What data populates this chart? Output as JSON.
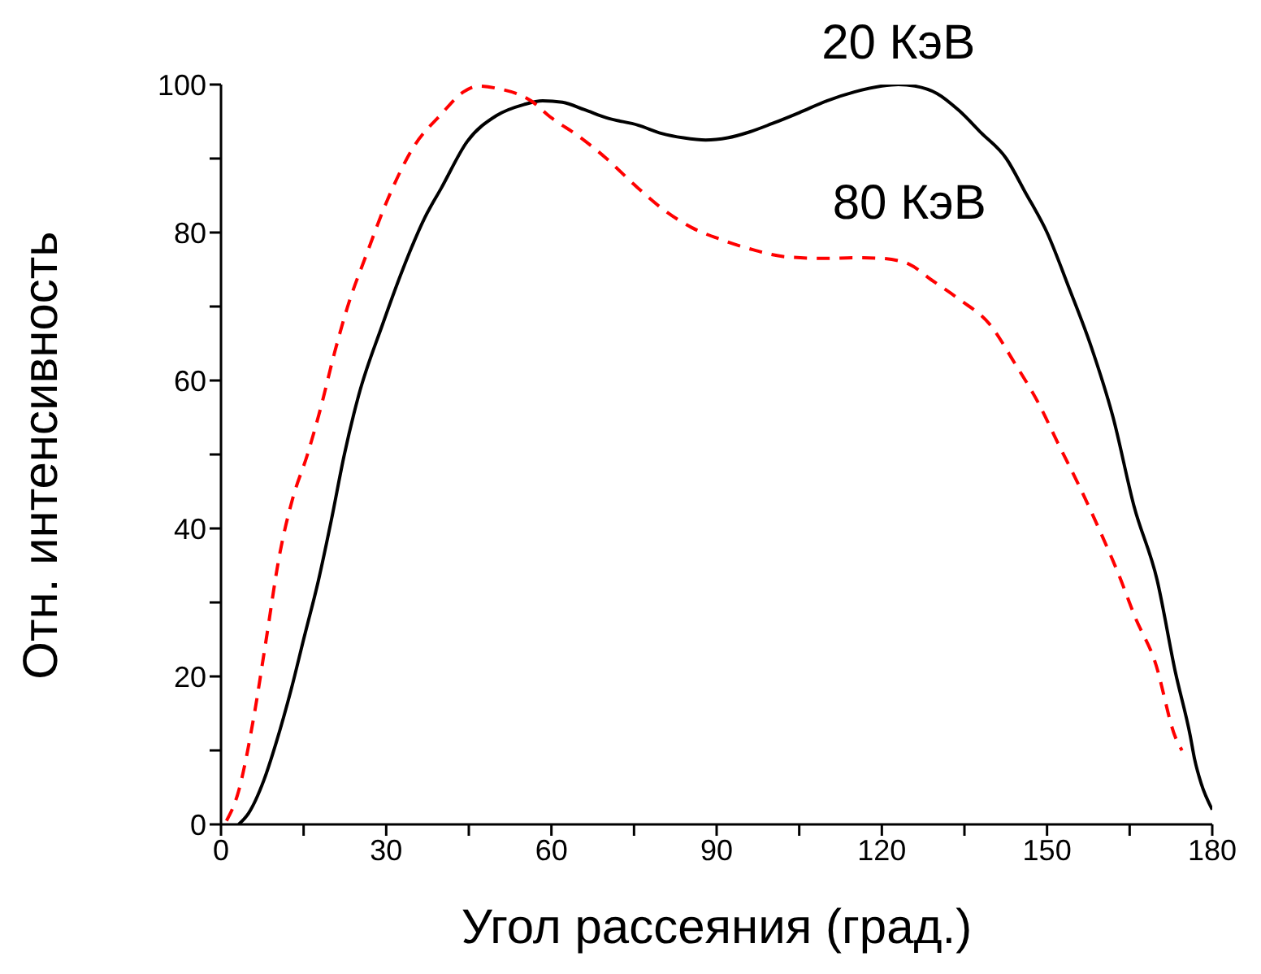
{
  "chart_data": {
    "type": "line",
    "xlabel": "Угол рассеяния (град.)",
    "ylabel": "Отн. интенсивность",
    "xlim": [
      0,
      180
    ],
    "ylim": [
      0,
      100
    ],
    "xticks": [
      0,
      {
        "value": 15,
        "label": null
      },
      30,
      {
        "value": 45,
        "label": null
      },
      60,
      {
        "value": 75,
        "label": null
      },
      90,
      {
        "value": 105,
        "label": null
      },
      120,
      {
        "value": 135,
        "label": null
      },
      150,
      {
        "value": 165,
        "label": null
      },
      180
    ],
    "yticks": [
      0,
      {
        "value": 10,
        "label": null
      },
      20,
      {
        "value": 30,
        "label": null
      },
      40,
      {
        "value": 50,
        "label": null
      },
      60,
      {
        "value": 70,
        "label": null
      },
      80,
      {
        "value": 90,
        "label": null
      },
      100
    ],
    "marker": "none",
    "series": [
      {
        "name": "20 КэВ",
        "color": "#000000",
        "line_style": "solid",
        "x": [
          3.2,
          5,
          7.8,
          10,
          12.8,
          15,
          17.7,
          20,
          22.4,
          25,
          29.3,
          33,
          37,
          40,
          44.7,
          50,
          55,
          58.4,
          62,
          66,
          70,
          75.8,
          80,
          84,
          88,
          92,
          96,
          100,
          105,
          110,
          115,
          120,
          123,
          126,
          130,
          134,
          138,
          142.6,
          146,
          150,
          154,
          158,
          162,
          165.8,
          170,
          173.3,
          176,
          176.8,
          178,
          180
        ],
        "values": [
          0,
          1.5,
          6,
          11,
          18.4,
          25,
          33,
          41,
          50,
          58,
          67.5,
          75,
          82,
          86,
          92.3,
          95.8,
          97.3,
          97.8,
          97.6,
          96.6,
          95.5,
          94.5,
          93.4,
          92.8,
          92.5,
          92.8,
          93.6,
          94.7,
          96.2,
          97.8,
          99,
          99.8,
          100,
          99.8,
          98.8,
          96.5,
          93.5,
          90,
          85.5,
          80,
          72.5,
          64.6,
          55,
          43,
          33,
          20.6,
          12,
          8.8,
          5.5,
          2
        ]
      },
      {
        "name": "80 КэВ",
        "color": "#ff0000",
        "line_style": "dashed",
        "x": [
          1,
          3,
          6,
          8,
          10.7,
          13,
          15.7,
          18,
          20.6,
          23,
          26.4,
          30,
          35,
          40,
          44,
          46.7,
          50,
          56.3,
          60,
          65,
          70,
          75,
          80,
          85.4,
          91,
          96,
          102.8,
          110,
          115,
          120,
          125,
          129,
          134,
          139.7,
          144,
          148.4,
          152,
          156,
          160,
          163,
          166,
          169.6,
          173.3,
          174.5
        ],
        "values": [
          0.5,
          4,
          14.7,
          24,
          36.7,
          44,
          50,
          56,
          63.7,
          70,
          77,
          84,
          91.6,
          96,
          99,
          99.8,
          99.5,
          97.8,
          95.5,
          93,
          90,
          86.5,
          83.3,
          80.7,
          79,
          77.8,
          76.7,
          76.5,
          76.6,
          76.5,
          75.7,
          73.6,
          71,
          67.5,
          62.5,
          57,
          51.5,
          45.5,
          39,
          33.8,
          28,
          22,
          11.8,
          10
        ]
      }
    ]
  }
}
